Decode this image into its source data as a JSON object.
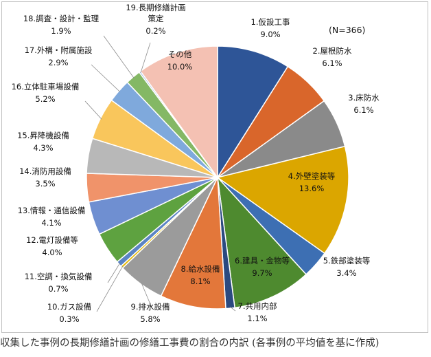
{
  "chart_data": {
    "type": "pie",
    "title": "",
    "annotation": "(N=366)",
    "slices": [
      {
        "name": "1.仮設工事",
        "value": 9.0,
        "label": "9.0%",
        "color": "#2e5597"
      },
      {
        "name": "2.屋根防水",
        "value": 6.1,
        "label": "6.1%",
        "color": "#d9662b"
      },
      {
        "name": "3.床防水",
        "value": 6.1,
        "label": "6.1%",
        "color": "#8a8a8a"
      },
      {
        "name": "4.外壁塗装等",
        "value": 13.6,
        "label": "13.6%",
        "color": "#dba600"
      },
      {
        "name": "5.鉄部塗装等",
        "value": 3.4,
        "label": "3.4%",
        "color": "#3d6fb3"
      },
      {
        "name": "6.建具・金物等",
        "value": 9.7,
        "label": "9.7%",
        "color": "#4e8a2f"
      },
      {
        "name": "7.共用内部",
        "value": 1.1,
        "label": "1.1%",
        "color": "#2b4a80"
      },
      {
        "name": "8.給水設備",
        "value": 8.1,
        "label": "8.1%",
        "color": "#e3773a"
      },
      {
        "name": "9.排水設備",
        "value": 5.8,
        "label": "5.8%",
        "color": "#9b9b9b"
      },
      {
        "name": "10.ガス設備",
        "value": 0.3,
        "label": "0.3%",
        "color": "#e6b800"
      },
      {
        "name": "11.空調・換気設備",
        "value": 0.7,
        "label": "0.7%",
        "color": "#5b84c4"
      },
      {
        "name": "12.電灯設備等",
        "value": 4.0,
        "label": "4.0%",
        "color": "#5ea240"
      },
      {
        "name": "13.情報・通信設備",
        "value": 4.1,
        "label": "4.1%",
        "color": "#6f8fd1"
      },
      {
        "name": "14.消防用設備",
        "value": 3.5,
        "label": "3.5%",
        "color": "#f0936a"
      },
      {
        "name": "15.昇降機設備",
        "value": 4.3,
        "label": "4.3%",
        "color": "#b8b8b8"
      },
      {
        "name": "16.立体駐車場設備",
        "value": 5.2,
        "label": "5.2%",
        "color": "#f9c65c"
      },
      {
        "name": "17.外構・附属施設",
        "value": 2.9,
        "label": "2.9%",
        "color": "#7fa9dc"
      },
      {
        "name": "18.調査・設計・監理",
        "value": 1.9,
        "label": "1.9%",
        "color": "#84b865"
      },
      {
        "name": "19.長期修繕計画策定",
        "value": 0.2,
        "label": "0.2%",
        "color": "#9ab3df"
      },
      {
        "name": "その他",
        "value": 10.0,
        "label": "10.0%",
        "color": "#f4c1b3"
      }
    ]
  },
  "caption": "収集した事例の長期修繕計画の修繕工事費の割合の内訳 (各事例の平均値を基に作成)"
}
